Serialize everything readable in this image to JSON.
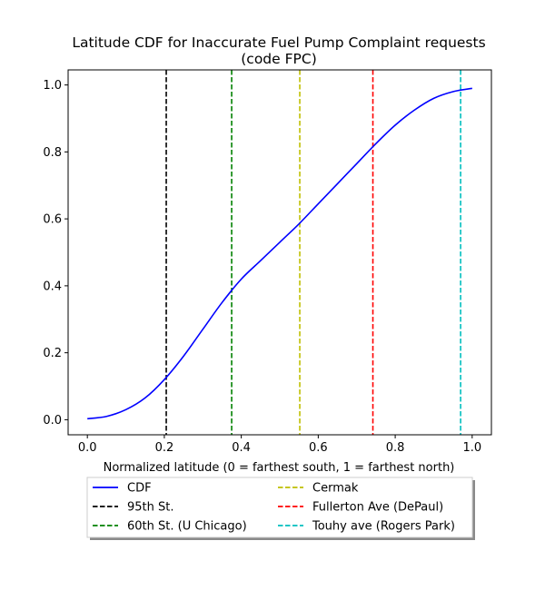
{
  "chart_data": {
    "type": "line",
    "title_line1": "Latitude CDF for Inaccurate Fuel Pump Complaint  requests",
    "title_line2": "(code FPC)",
    "xlabel": "Normalized latitude (0 = farthest south, 1 = farthest north)",
    "ylabel": "",
    "xlim": [
      -0.05,
      1.05
    ],
    "ylim": [
      -0.045,
      1.045
    ],
    "xticks": [
      0.0,
      0.2,
      0.4,
      0.6,
      0.8,
      1.0
    ],
    "xtick_labels": [
      "0.0",
      "0.2",
      "0.4",
      "0.6",
      "0.8",
      "1.0"
    ],
    "yticks": [
      0.0,
      0.2,
      0.4,
      0.6,
      0.8,
      1.0
    ],
    "ytick_labels": [
      "0.0",
      "0.2",
      "0.4",
      "0.6",
      "0.8",
      "1.0"
    ],
    "grid": false,
    "legend_placement": "below",
    "series": [
      {
        "name": "CDF",
        "color": "#0000ff",
        "style": "solid",
        "x": [
          0.0,
          0.05,
          0.1,
          0.15,
          0.2,
          0.25,
          0.3,
          0.35,
          0.4,
          0.45,
          0.5,
          0.55,
          0.6,
          0.65,
          0.7,
          0.75,
          0.8,
          0.85,
          0.9,
          0.95,
          1.0
        ],
        "y": [
          0.003,
          0.01,
          0.03,
          0.065,
          0.12,
          0.19,
          0.27,
          0.35,
          0.42,
          0.475,
          0.53,
          0.585,
          0.645,
          0.705,
          0.765,
          0.825,
          0.88,
          0.925,
          0.96,
          0.98,
          0.99
        ]
      }
    ],
    "vlines": [
      {
        "name": "95th St.",
        "x": 0.205,
        "color": "#000000"
      },
      {
        "name": "60th St. (U Chicago)",
        "x": 0.375,
        "color": "#008000"
      },
      {
        "name": "Cermak",
        "x": 0.552,
        "color": "#bfbf00"
      },
      {
        "name": "Fullerton Ave (DePaul)",
        "x": 0.742,
        "color": "#ff0000"
      },
      {
        "name": "Touhy ave (Rogers Park)",
        "x": 0.97,
        "color": "#00bfbf"
      }
    ],
    "legend": [
      "CDF",
      "95th St.",
      "60th St. (U Chicago)",
      "Cermak",
      "Fullerton Ave (DePaul)",
      "Touhy ave (Rogers Park)"
    ]
  }
}
